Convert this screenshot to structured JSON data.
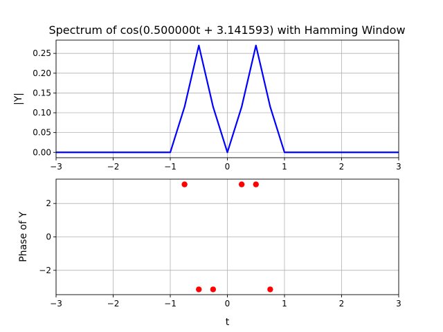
{
  "chart_data": [
    {
      "type": "line",
      "title": "Spectrum of cos(0.500000t + 3.141593) with Hamming Window",
      "xlabel": "",
      "ylabel": "|Y|",
      "xlim": [
        -3,
        3
      ],
      "ylim": [
        -0.0135,
        0.2835
      ],
      "grid": true,
      "xticks": [
        "−3",
        "−2",
        "−1",
        "0",
        "1",
        "2",
        "3"
      ],
      "yticks": [
        "0.00",
        "0.05",
        "0.10",
        "0.15",
        "0.20",
        "0.25"
      ],
      "line_color": "#0000ff",
      "series": [
        {
          "x": [
            -3,
            -2.75,
            -2.5,
            -2.25,
            -2,
            -1.75,
            -1.5,
            -1.25,
            -1,
            -0.75,
            -0.5,
            -0.25,
            0,
            0.25,
            0.5,
            0.75,
            1,
            1.25,
            1.5,
            1.75,
            2,
            2.25,
            2.5,
            2.75,
            3
          ],
          "values": [
            0,
            0,
            0,
            0,
            0,
            0,
            0,
            0,
            0,
            0.115,
            0.27,
            0.115,
            0,
            0.115,
            0.27,
            0.115,
            0,
            0,
            0,
            0,
            0,
            0,
            0,
            0,
            0
          ]
        }
      ]
    },
    {
      "type": "scatter",
      "title": "",
      "xlabel": "t",
      "ylabel": "Phase of Y",
      "xlim": [
        -3,
        3
      ],
      "ylim": [
        -3.456,
        3.456
      ],
      "grid": true,
      "xticks": [
        "−3",
        "−2",
        "−1",
        "0",
        "1",
        "2",
        "3"
      ],
      "yticks": [
        "−2",
        "0",
        "2"
      ],
      "marker_color": "#ff0000",
      "series": [
        {
          "x": [
            -0.75,
            -0.5,
            -0.25,
            0.25,
            0.5,
            0.75
          ],
          "values": [
            3.14159,
            -3.14159,
            -3.14159,
            3.14159,
            3.14159,
            -3.14159
          ]
        }
      ]
    }
  ]
}
